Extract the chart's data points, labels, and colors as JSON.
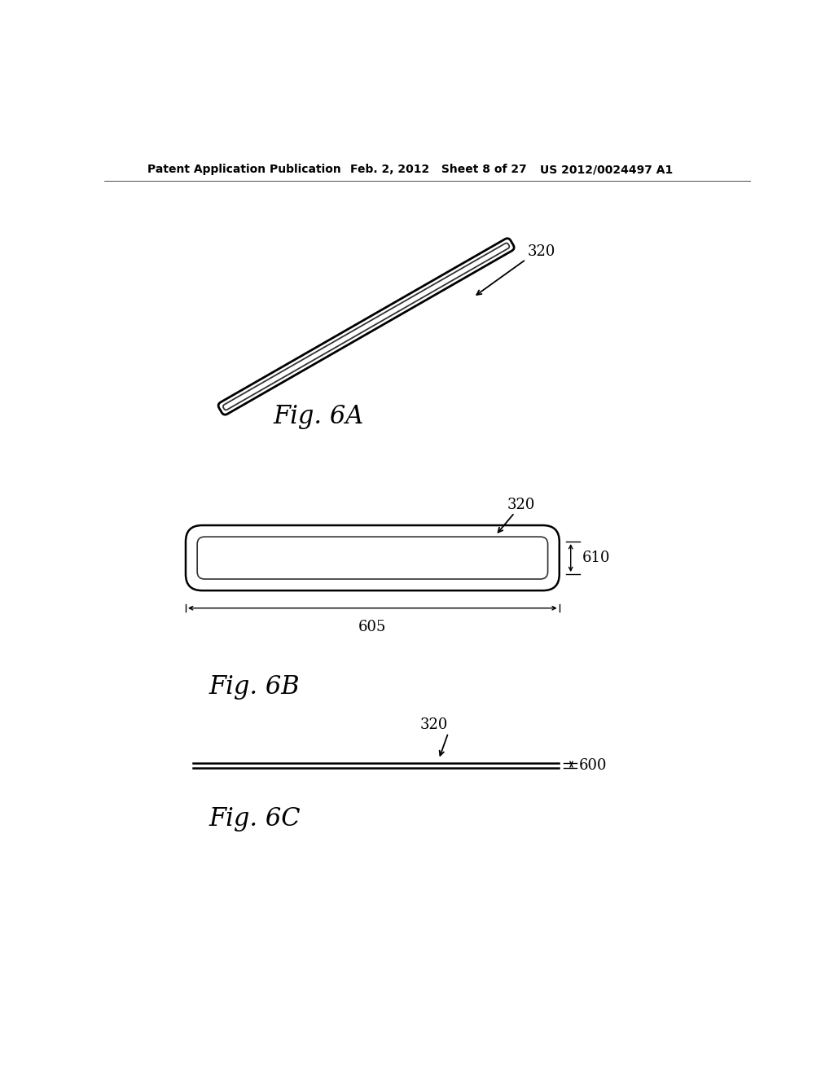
{
  "bg_color": "#ffffff",
  "text_color": "#000000",
  "header_left": "Patent Application Publication",
  "header_mid": "Feb. 2, 2012   Sheet 8 of 27",
  "header_right": "US 2012/0024497 A1",
  "header_fontsize": 10,
  "fig6A_label": "Fig. 6A",
  "fig6B_label": "Fig. 6B",
  "fig6C_label": "Fig. 6C",
  "label_320_fig6A": "320",
  "label_320_fig6B": "320",
  "label_320_fig6C": "320",
  "label_605": "605",
  "label_610": "610",
  "label_600": "600",
  "fig_label_fontsize": 22,
  "dim_label_fontsize": 13,
  "ref_label_fontsize": 13
}
